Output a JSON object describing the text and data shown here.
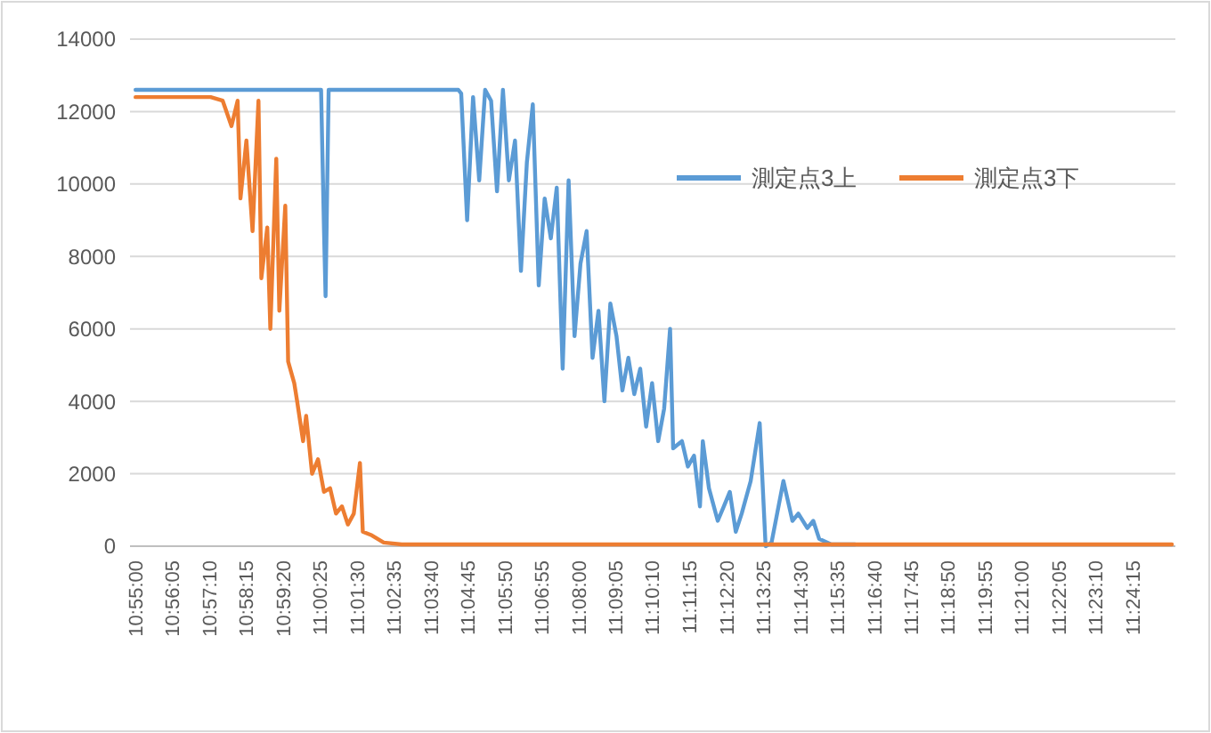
{
  "chart_data": {
    "type": "line",
    "grid": "y",
    "legend": "top right",
    "marker": "none",
    "line_style": "solid",
    "xlim": [
      10.914,
      11.425
    ],
    "ylim": [
      0,
      14000
    ],
    "yticks": [
      0,
      2000,
      4000,
      6000,
      8000,
      10000,
      12000,
      14000
    ],
    "xticks": [
      {
        "value": 10.9167,
        "label": "10:55:00"
      },
      {
        "value": 10.9347,
        "label": "10:56:05"
      },
      {
        "value": 10.9528,
        "label": "10:57:10"
      },
      {
        "value": 10.9708,
        "label": "10:58:15"
      },
      {
        "value": 10.9889,
        "label": "10:59:20"
      },
      {
        "value": 11.0069,
        "label": "11:00:25"
      },
      {
        "value": 11.025,
        "label": "11:01:30"
      },
      {
        "value": 11.0431,
        "label": "11:02:35"
      },
      {
        "value": 11.0611,
        "label": "11:03:40"
      },
      {
        "value": 11.0792,
        "label": "11:04:45"
      },
      {
        "value": 11.0972,
        "label": "11:05:50"
      },
      {
        "value": 11.1153,
        "label": "11:06:55"
      },
      {
        "value": 11.1333,
        "label": "11:08:00"
      },
      {
        "value": 11.1514,
        "label": "11:09:05"
      },
      {
        "value": 11.1694,
        "label": "11:10:10"
      },
      {
        "value": 11.1875,
        "label": "11:11:15"
      },
      {
        "value": 11.2056,
        "label": "11:12:20"
      },
      {
        "value": 11.2236,
        "label": "11:13:25"
      },
      {
        "value": 11.2417,
        "label": "11:14:30"
      },
      {
        "value": 11.2597,
        "label": "11:15:35"
      },
      {
        "value": 11.2778,
        "label": "11:16:40"
      },
      {
        "value": 11.2958,
        "label": "11:17:45"
      },
      {
        "value": 11.3139,
        "label": "11:18:50"
      },
      {
        "value": 11.3319,
        "label": "11:19:55"
      },
      {
        "value": 11.35,
        "label": "11:21:00"
      },
      {
        "value": 11.3681,
        "label": "11:22:05"
      },
      {
        "value": 11.3861,
        "label": "11:23:10"
      },
      {
        "value": 11.4042,
        "label": "11:24:15"
      }
    ],
    "series": [
      {
        "name": "測定点3上",
        "color": "#5b9bd5",
        "x": [
          10.9167,
          11.0074,
          11.0088,
          11.0096,
          11.0111,
          11.0745,
          11.0759,
          11.0788,
          11.0817,
          11.0847,
          11.0876,
          11.0905,
          11.0934,
          11.0963,
          11.0992,
          11.1022,
          11.1051,
          11.108,
          11.1109,
          11.1138,
          11.1167,
          11.1197,
          11.1226,
          11.1255,
          11.1284,
          11.1313,
          11.1342,
          11.1372,
          11.1401,
          11.143,
          11.1459,
          11.1488,
          11.1518,
          11.1547,
          11.1576,
          11.1605,
          11.1634,
          11.1663,
          11.1692,
          11.1722,
          11.1751,
          11.178,
          11.1795,
          11.1838,
          11.1867,
          11.1897,
          11.1926,
          11.194,
          11.197,
          11.2013,
          11.2043,
          11.2072,
          11.2101,
          11.213,
          11.2174,
          11.2218,
          11.2247,
          11.2276,
          11.2334,
          11.2378,
          11.2407,
          11.2451,
          11.248,
          11.2509,
          11.2568,
          11.2684
        ],
        "values": [
          12600,
          12600,
          8800,
          6900,
          12600,
          12600,
          12500,
          9000,
          12400,
          10100,
          12600,
          12300,
          9800,
          12600,
          10100,
          11200,
          7600,
          10600,
          12200,
          7200,
          9600,
          8500,
          9900,
          4900,
          10100,
          5800,
          7800,
          8700,
          5200,
          6500,
          4000,
          6700,
          5800,
          4300,
          5200,
          4200,
          4900,
          3300,
          4500,
          2900,
          3800,
          6000,
          2700,
          2900,
          2200,
          2500,
          1100,
          2900,
          1600,
          700,
          1100,
          1500,
          400,
          900,
          1800,
          3400,
          0,
          100,
          1800,
          700,
          900,
          500,
          700,
          200,
          50,
          50
        ]
      },
      {
        "name": "測定点3下",
        "color": "#ed7d31",
        "x": [
          10.9167,
          10.9534,
          10.9593,
          10.9636,
          10.9666,
          10.968,
          10.9709,
          10.9739,
          10.9768,
          10.9782,
          10.9811,
          10.9826,
          10.9855,
          10.987,
          10.9899,
          10.9913,
          10.9943,
          10.9957,
          10.9986,
          11.0001,
          11.003,
          11.0059,
          11.0088,
          11.0118,
          11.0147,
          11.0176,
          11.0205,
          11.0234,
          11.0264,
          11.0278,
          11.0322,
          11.038,
          11.0468,
          11.4233
        ],
        "values": [
          12400,
          12400,
          12300,
          11600,
          12300,
          9600,
          11200,
          8700,
          12300,
          7400,
          8800,
          6000,
          10700,
          6500,
          9400,
          5100,
          4500,
          4000,
          2900,
          3600,
          2000,
          2400,
          1500,
          1600,
          900,
          1100,
          600,
          900,
          2300,
          400,
          300,
          100,
          50,
          50
        ]
      }
    ]
  }
}
